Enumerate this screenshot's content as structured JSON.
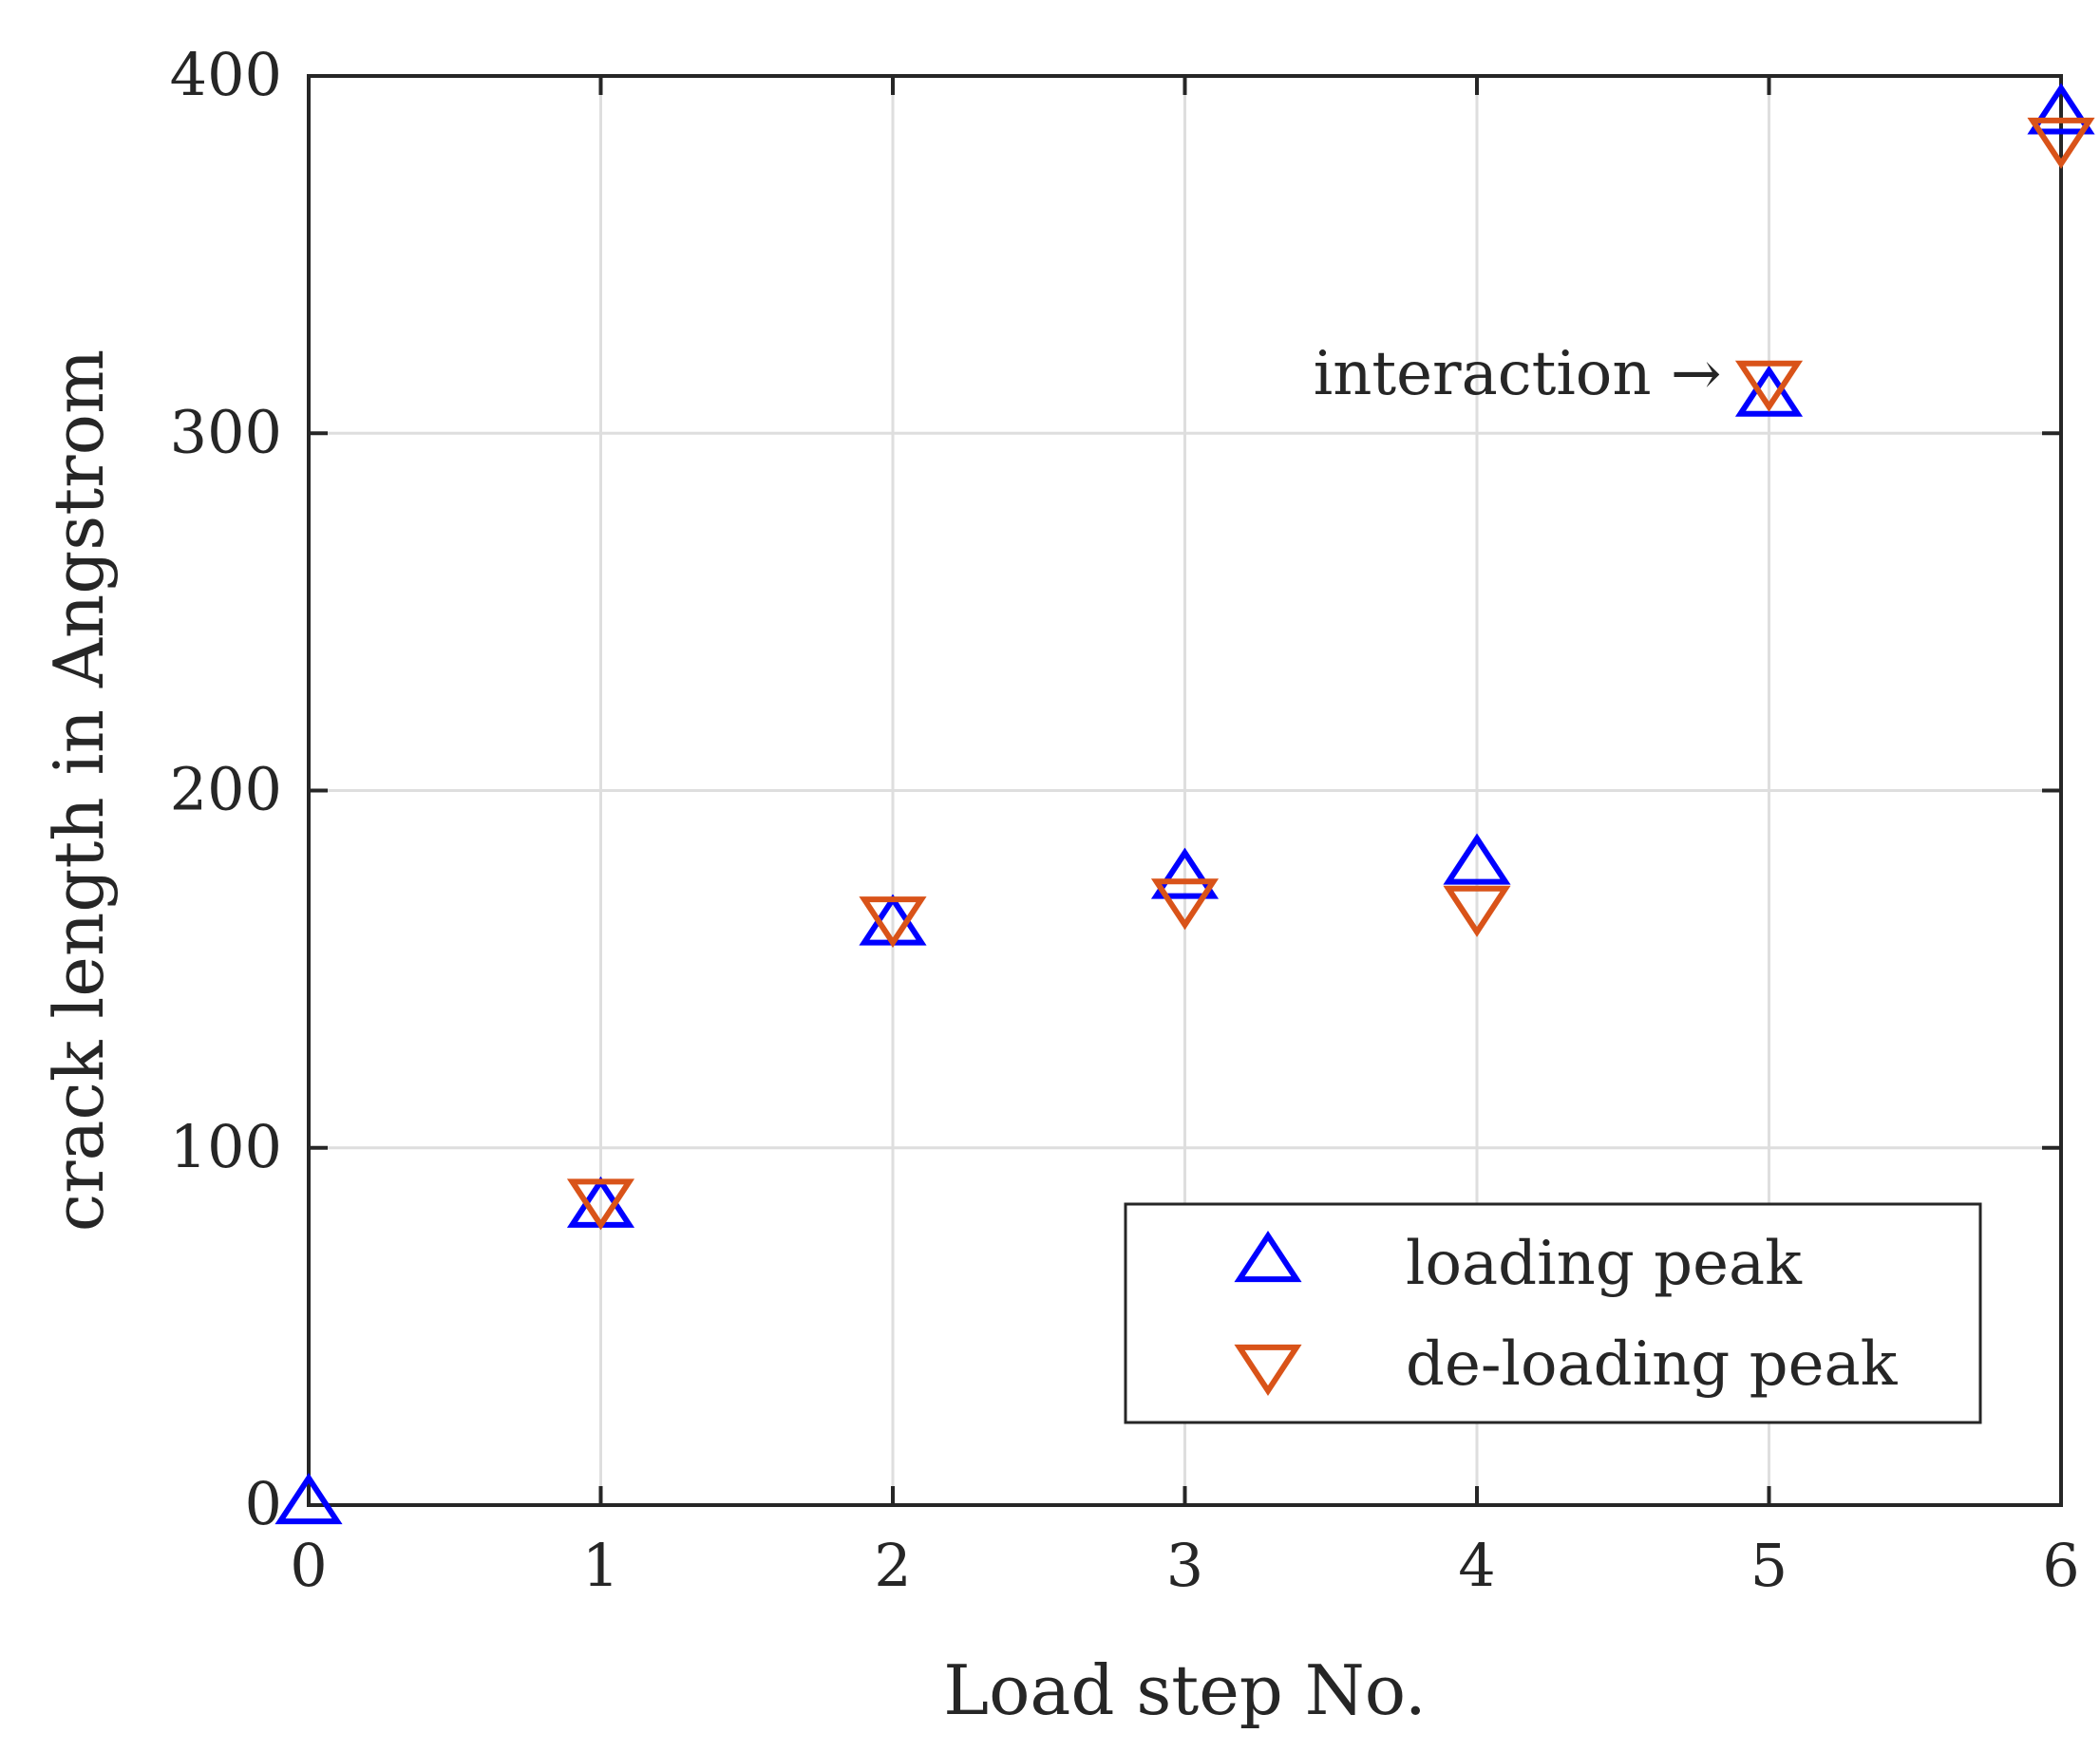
{
  "chart_data": {
    "type": "scatter",
    "title": "",
    "xlabel": "Load step No.",
    "ylabel": "crack length in Angstrom",
    "xlim": [
      0,
      6
    ],
    "ylim": [
      0,
      400
    ],
    "x_ticks": [
      0,
      1,
      2,
      3,
      4,
      5,
      6
    ],
    "y_ticks": [
      0,
      100,
      200,
      300,
      400
    ],
    "grid": true,
    "series": [
      {
        "name": "loading peak",
        "marker": "triangle-up",
        "color": "#0000ff",
        "x": [
          0,
          1,
          2,
          3,
          4,
          5,
          6
        ],
        "y": [
          0,
          83,
          162,
          175,
          179,
          310,
          389
        ]
      },
      {
        "name": "de-loading peak",
        "marker": "triangle-down",
        "color": "#d95319",
        "x": [
          1,
          2,
          3,
          4,
          5,
          6
        ],
        "y": [
          86,
          165,
          170,
          168,
          315,
          383
        ]
      }
    ],
    "legend": {
      "position": "bottom-right",
      "entries": [
        "loading peak",
        "de-loading peak"
      ]
    },
    "annotation": {
      "text": "interaction →",
      "x": 5,
      "y": 312
    }
  }
}
